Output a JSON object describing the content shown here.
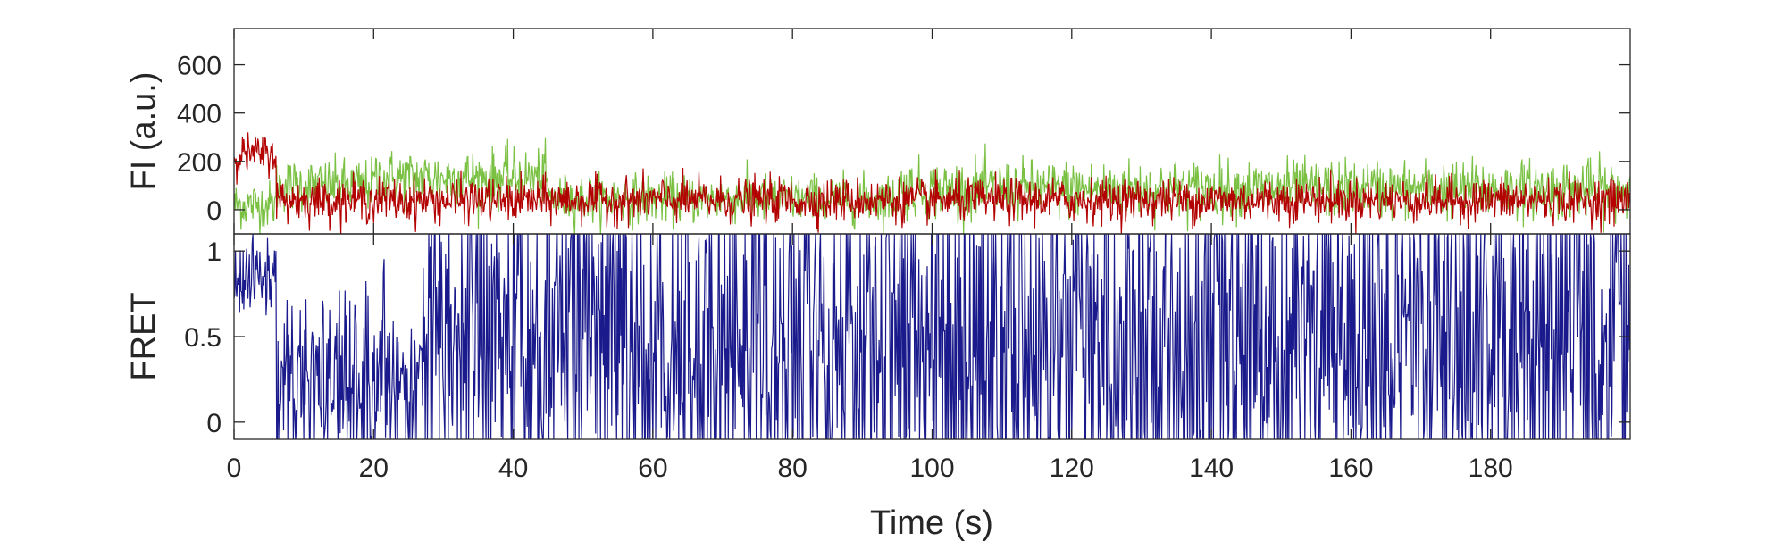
{
  "chart_data": [
    {
      "type": "line",
      "ylabel": "FI (a.u.)",
      "xlabel": "",
      "xlim": [
        0,
        200
      ],
      "ylim": [
        -100,
        750
      ],
      "yticks": [
        0,
        200,
        400,
        600
      ],
      "xticks": [],
      "grid": false,
      "series": [
        {
          "color": "#7ac143",
          "segments": [
            {
              "x0": 0,
              "x1": 6,
              "mean": 20,
              "noise": 50
            },
            {
              "x0": 6,
              "x1": 20,
              "mean": 100,
              "noise": 55
            },
            {
              "x0": 20,
              "x1": 45,
              "mean": 130,
              "noise": 60
            },
            {
              "x0": 45,
              "x1": 95,
              "mean": 45,
              "noise": 50
            },
            {
              "x0": 95,
              "x1": 200,
              "mean": 85,
              "noise": 60
            }
          ]
        },
        {
          "color": "#b30000",
          "segments": [
            {
              "x0": 0,
              "x1": 6,
              "mean": 230,
              "noise": 40
            },
            {
              "x0": 6,
              "x1": 200,
              "mean": 40,
              "noise": 45
            }
          ]
        }
      ]
    },
    {
      "type": "line",
      "ylabel": "FRET",
      "xlabel": "Time (s)",
      "xlim": [
        0,
        200
      ],
      "ylim": [
        -0.1,
        1.1
      ],
      "yticks": [
        0,
        0.5,
        1
      ],
      "xticks": [
        0,
        20,
        40,
        60,
        80,
        100,
        120,
        140,
        160,
        180
      ],
      "grid": false,
      "series": [
        {
          "color": "#1a1a8c",
          "segments": [
            {
              "x0": 0,
              "x1": 6,
              "mean": 0.85,
              "noise": 0.12
            },
            {
              "x0": 6,
              "x1": 27,
              "mean": 0.25,
              "noise": 0.25
            },
            {
              "x0": 27,
              "x1": 200,
              "mean": 0.45,
              "noise": 0.5
            }
          ]
        }
      ]
    }
  ],
  "labels": {
    "top_ylabel": "FI (a.u.)",
    "bottom_ylabel": "FRET",
    "xlabel": "Time (s)",
    "top_yticks": [
      "0",
      "200",
      "400",
      "600"
    ],
    "bottom_yticks": [
      "0",
      "0.5",
      "1"
    ],
    "xticks": [
      "0",
      "20",
      "40",
      "60",
      "80",
      "100",
      "120",
      "140",
      "160",
      "180"
    ]
  }
}
